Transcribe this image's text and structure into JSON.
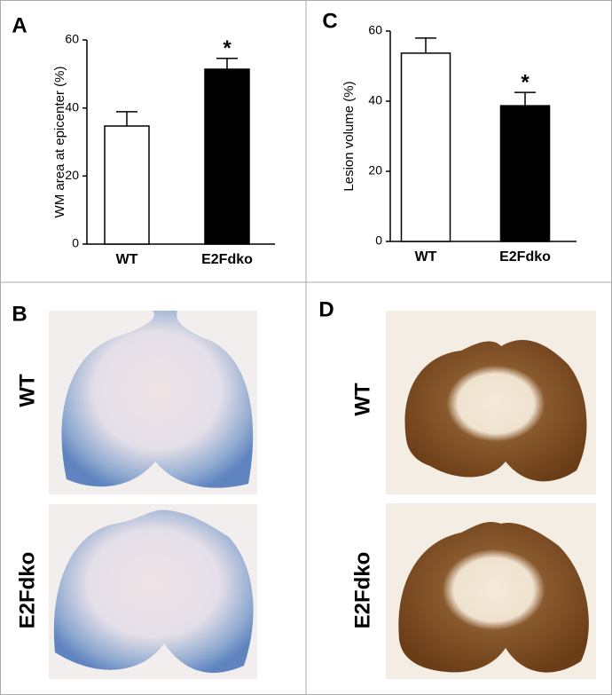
{
  "chart_data": [
    {
      "type": "bar",
      "panel_label": "A",
      "y_label": "WM area at epicenter (%)",
      "categories": [
        "WT",
        "E2Fdko"
      ],
      "values": [
        34.7,
        51.4
      ],
      "errors": [
        4.2,
        3.2
      ],
      "colors": [
        "#ffffff",
        "#000000"
      ],
      "annotations": [
        {
          "category": 1,
          "text": "*"
        }
      ],
      "ylim": [
        0,
        60
      ],
      "yticks": [
        0,
        20,
        40,
        60
      ]
    },
    {
      "type": "bar",
      "panel_label": "C",
      "y_label": "Lesion volume (%)",
      "categories": [
        "WT",
        "E2Fdko"
      ],
      "values": [
        53.7,
        38.7
      ],
      "errors": [
        4.3,
        3.8
      ],
      "colors": [
        "#ffffff",
        "#000000"
      ],
      "annotations": [
        {
          "category": 1,
          "text": "*"
        }
      ],
      "ylim": [
        0,
        60
      ],
      "yticks": [
        0,
        20,
        40,
        60
      ]
    }
  ],
  "image_panels": [
    {
      "panel_label": "B",
      "rows": [
        "WT",
        "E2Fdko"
      ]
    },
    {
      "panel_label": "D",
      "rows": [
        "WT",
        "E2Fdko"
      ]
    }
  ]
}
